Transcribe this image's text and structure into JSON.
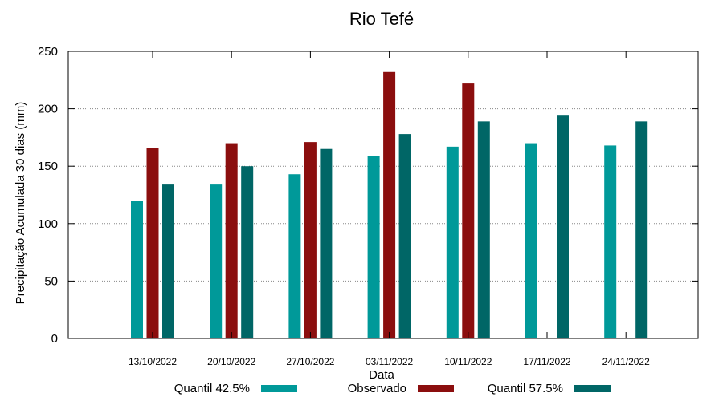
{
  "chart_data": {
    "type": "bar",
    "title": "Rio Tefé",
    "xlabel": "Data",
    "ylabel": "Precipitação Acumulada 30 dias (mm)",
    "ylim": [
      0,
      250
    ],
    "yticks": [
      0,
      50,
      100,
      150,
      200,
      250
    ],
    "grid": "horizontal dotted",
    "legend_position": "bottom",
    "categories": [
      "13/10/2022",
      "20/10/2022",
      "27/10/2022",
      "03/11/2022",
      "10/11/2022",
      "17/11/2022",
      "24/11/2022"
    ],
    "series": [
      {
        "name": "Quantil 42.5%",
        "color": "#009999",
        "values": [
          120,
          134,
          143,
          159,
          167,
          170,
          168
        ]
      },
      {
        "name": "Observado",
        "color": "#8b0e0e",
        "values": [
          166,
          170,
          171,
          232,
          222,
          null,
          null
        ]
      },
      {
        "name": "Quantil 57.5%",
        "color": "#006666",
        "values": [
          134,
          150,
          165,
          178,
          189,
          194,
          189
        ]
      }
    ]
  }
}
